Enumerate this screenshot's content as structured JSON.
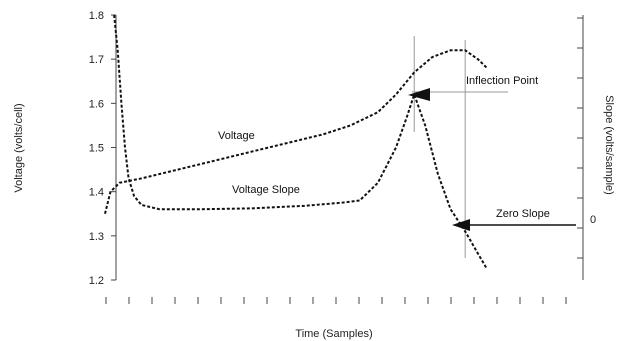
{
  "chart_data": {
    "type": "line",
    "title": "",
    "xlabel": "Time (Samples)",
    "ylabel": "Voltage (volts/cell)",
    "ylabel_right": "Slope (volts/sample)",
    "x": [
      0,
      1,
      2,
      3,
      4,
      5,
      6,
      7,
      8,
      9,
      10,
      11,
      12,
      13,
      14,
      15,
      16,
      17,
      18,
      19,
      20,
      21
    ],
    "xlim": [
      0,
      21
    ],
    "ylim": [
      1.2,
      1.8
    ],
    "yticks": [
      1.2,
      1.3,
      1.4,
      1.5,
      1.6,
      1.7,
      1.8
    ],
    "ytick_labels": [
      "1.2",
      "1.3",
      "1.4",
      "1.5",
      "1.6",
      "1.7",
      "1.8"
    ],
    "right_tick_labels": [
      "0"
    ],
    "grid": false,
    "legend": "none",
    "series": [
      {
        "key": "voltage",
        "style": "dashed",
        "points": [
          [
            0.0,
            1.35
          ],
          [
            0.3,
            1.4
          ],
          [
            0.8,
            1.42
          ],
          [
            2,
            1.43
          ],
          [
            4,
            1.45
          ],
          [
            6,
            1.47
          ],
          [
            8,
            1.49
          ],
          [
            10,
            1.51
          ],
          [
            12,
            1.53
          ],
          [
            13.5,
            1.55
          ],
          [
            15,
            1.58
          ],
          [
            16,
            1.62
          ],
          [
            17,
            1.67
          ],
          [
            18,
            1.705
          ],
          [
            19,
            1.72
          ],
          [
            19.8,
            1.72
          ],
          [
            20.5,
            1.7
          ],
          [
            21,
            1.68
          ]
        ]
      },
      {
        "key": "voltage_slope",
        "style": "dashed",
        "points": [
          [
            0.5,
            1.8
          ],
          [
            0.7,
            1.72
          ],
          [
            0.9,
            1.6
          ],
          [
            1.1,
            1.5
          ],
          [
            1.3,
            1.43
          ],
          [
            1.6,
            1.39
          ],
          [
            2,
            1.37
          ],
          [
            3,
            1.36
          ],
          [
            5,
            1.36
          ],
          [
            8,
            1.362
          ],
          [
            11,
            1.368
          ],
          [
            13,
            1.375
          ],
          [
            14,
            1.38
          ],
          [
            15,
            1.42
          ],
          [
            16,
            1.5
          ],
          [
            16.6,
            1.57
          ],
          [
            17,
            1.62
          ],
          [
            17.6,
            1.55
          ],
          [
            18.3,
            1.44
          ],
          [
            19,
            1.36
          ],
          [
            19.8,
            1.31
          ],
          [
            20.5,
            1.26
          ],
          [
            21,
            1.225
          ]
        ]
      }
    ],
    "reference_lines": {
      "inflection_x": 17.0,
      "zero_slope_x": 19.8
    },
    "annotations": {
      "voltage": "Voltage",
      "voltage_slope": "Voltage Slope",
      "inflection": "Inflection Point",
      "zero_slope": "Zero Slope"
    }
  }
}
